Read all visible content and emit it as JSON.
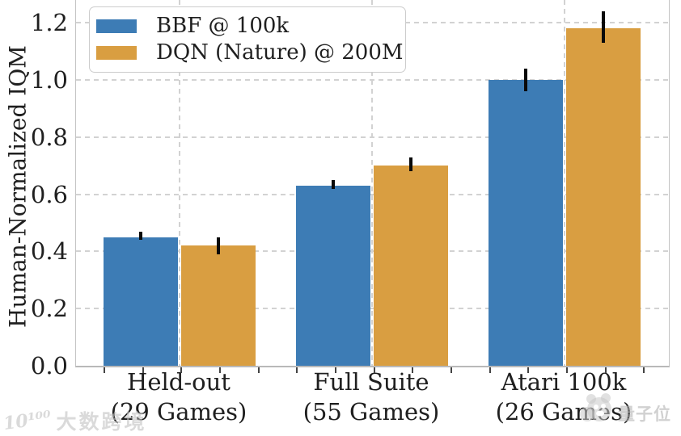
{
  "chart_data": {
    "type": "bar",
    "title": "",
    "xlabel": "",
    "ylabel": "Human-Normalized IQM",
    "ylim": [
      0.0,
      1.28
    ],
    "yticks": [
      0.0,
      0.2,
      0.4,
      0.6,
      0.8,
      1.0,
      1.2
    ],
    "grid": {
      "style": "dashed",
      "horizontal": true,
      "vertical_at_group_centers": true
    },
    "legend_position": "upper-left",
    "categories": [
      "Held-out\n(29 Games)",
      "Full Suite\n(55 Games)",
      "Atari 100k\n(26 Games)"
    ],
    "series": [
      {
        "name": "BBF @ 100k",
        "color": "#3D7CB5",
        "values": [
          0.45,
          0.63,
          1.0
        ],
        "error_low": [
          0.44,
          0.62,
          0.96
        ],
        "error_high": [
          0.47,
          0.65,
          1.04
        ]
      },
      {
        "name": "DQN (Nature) @ 200M",
        "color": "#D99E41",
        "values": [
          0.42,
          0.7,
          1.18
        ],
        "error_low": [
          0.39,
          0.68,
          1.13
        ],
        "error_high": [
          0.45,
          0.73,
          1.24
        ]
      }
    ]
  },
  "watermarks": {
    "bottom_left_logo_glyph": "10¹⁰⁰",
    "bottom_left_text": "大数跨境",
    "bottom_right_text": "量子位"
  },
  "colors": {
    "error_bar": "#0a0a0a",
    "axis_spine": "#bdbdbd",
    "grid": "#d2d2d2",
    "text": "#1f1f1f"
  }
}
